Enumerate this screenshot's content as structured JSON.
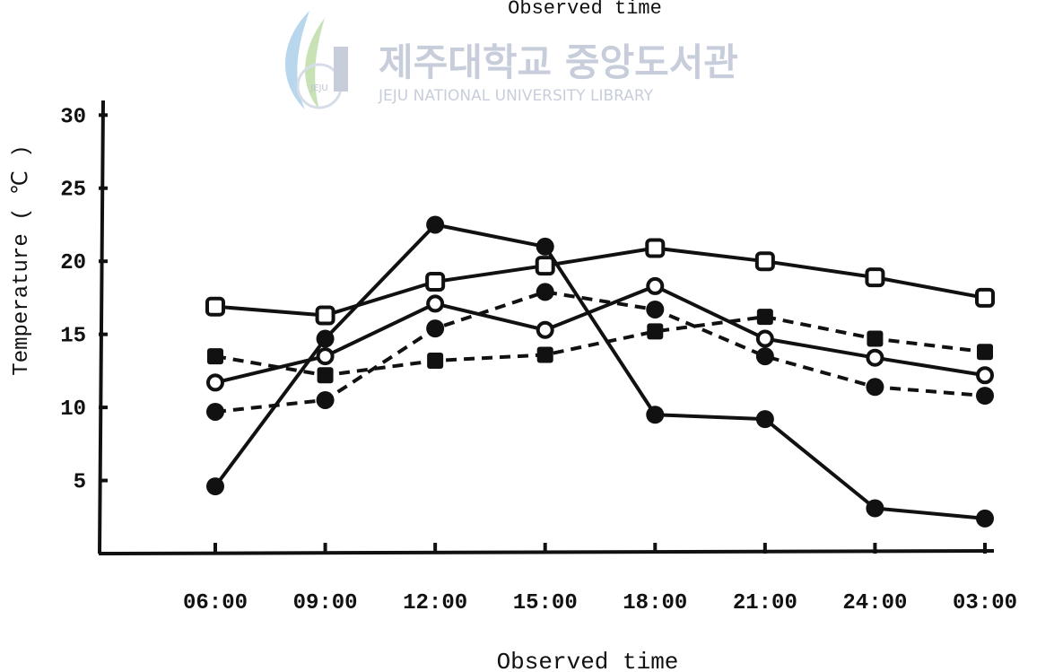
{
  "header": {
    "title": "Observed time"
  },
  "watermark": {
    "korean": "제주대학교 중앙도서관",
    "english": "JEJU NATIONAL UNIVERSITY  LIBRARY",
    "logo_text": "JEJU",
    "color": "#9aa6bd"
  },
  "chart_data": {
    "type": "line",
    "title": "",
    "xlabel": "Observed time",
    "ylabel": "Temperature ( ℃ )",
    "categories": [
      "06:00",
      "09:00",
      "12:00",
      "15:00",
      "18:00",
      "21:00",
      "24:00",
      "03:00"
    ],
    "ylim": [
      0,
      31
    ],
    "yticks": [
      5,
      10,
      15,
      20,
      25,
      30
    ],
    "ytick_labels": [
      "5",
      "10",
      "15",
      "20",
      "25",
      "30"
    ],
    "grid": false,
    "line_color": "#111111",
    "series": [
      {
        "marker": "filled-circle",
        "dash": "solid",
        "values": [
          4.6,
          14.7,
          22.5,
          21.0,
          9.5,
          9.2,
          3.1,
          2.4
        ]
      },
      {
        "marker": "open-circle",
        "dash": "solid",
        "values": [
          11.7,
          13.5,
          17.1,
          15.3,
          18.3,
          14.7,
          13.4,
          12.2
        ]
      },
      {
        "marker": "open-square",
        "dash": "solid",
        "values": [
          16.9,
          16.3,
          18.6,
          19.7,
          20.9,
          20.0,
          18.9,
          17.5
        ]
      },
      {
        "marker": "filled-circle",
        "dash": "dashed",
        "values": [
          9.7,
          10.5,
          15.4,
          17.9,
          16.7,
          13.5,
          11.4,
          10.8
        ]
      },
      {
        "marker": "filled-square",
        "dash": "dashed",
        "values": [
          13.5,
          12.2,
          13.2,
          13.6,
          15.2,
          16.2,
          14.7,
          13.8
        ]
      }
    ]
  }
}
